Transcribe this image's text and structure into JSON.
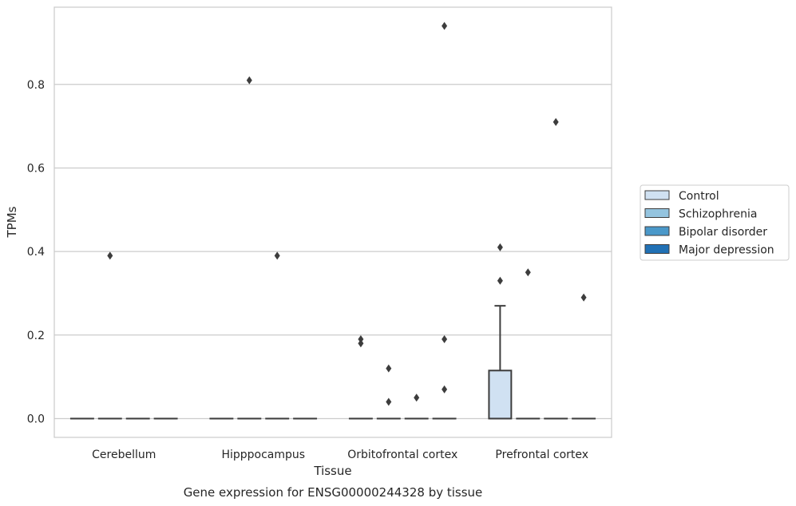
{
  "chart_data": {
    "type": "box",
    "caption": "Gene expression for ENSG00000244328 by tissue",
    "xlabel": "Tissue",
    "ylabel": "TPMs",
    "categories": [
      "Cerebellum",
      "Hipppocampus",
      "Orbitofrontal cortex",
      "Prefrontal cortex"
    ],
    "ylim": [
      -0.045,
      0.985
    ],
    "yticks": [
      "0.0",
      "0.2",
      "0.4",
      "0.6",
      "0.8"
    ],
    "grid": "horizontal",
    "legend_position": "right",
    "series": [
      {
        "name": "Control",
        "color": "#d0e1f2",
        "boxes": [
          {
            "category": "Cerebellum",
            "q1": 0,
            "median": 0,
            "q3": 0,
            "whisker_low": 0,
            "whisker_high": 0,
            "outliers": []
          },
          {
            "category": "Hipppocampus",
            "q1": 0,
            "median": 0,
            "q3": 0,
            "whisker_low": 0,
            "whisker_high": 0,
            "outliers": []
          },
          {
            "category": "Orbitofrontal cortex",
            "q1": 0,
            "median": 0,
            "q3": 0,
            "whisker_low": 0,
            "whisker_high": 0,
            "outliers": [
              0.19,
              0.18
            ]
          },
          {
            "category": "Prefrontal cortex",
            "q1": 0,
            "median": 0,
            "q3": 0.115,
            "whisker_low": 0,
            "whisker_high": 0.27,
            "outliers": [
              0.41,
              0.33
            ]
          }
        ]
      },
      {
        "name": "Schizophrenia",
        "color": "#94c4df",
        "boxes": [
          {
            "category": "Cerebellum",
            "q1": 0,
            "median": 0,
            "q3": 0,
            "whisker_low": 0,
            "whisker_high": 0,
            "outliers": [
              0.39
            ]
          },
          {
            "category": "Hipppocampus",
            "q1": 0,
            "median": 0,
            "q3": 0,
            "whisker_low": 0,
            "whisker_high": 0,
            "outliers": [
              0.81
            ]
          },
          {
            "category": "Orbitofrontal cortex",
            "q1": 0,
            "median": 0,
            "q3": 0,
            "whisker_low": 0,
            "whisker_high": 0,
            "outliers": [
              0.12,
              0.04
            ]
          },
          {
            "category": "Prefrontal cortex",
            "q1": 0,
            "median": 0,
            "q3": 0,
            "whisker_low": 0,
            "whisker_high": 0,
            "outliers": [
              0.35
            ]
          }
        ]
      },
      {
        "name": "Bipolar disorder",
        "color": "#4a98c9",
        "boxes": [
          {
            "category": "Cerebellum",
            "q1": 0,
            "median": 0,
            "q3": 0,
            "whisker_low": 0,
            "whisker_high": 0,
            "outliers": []
          },
          {
            "category": "Hipppocampus",
            "q1": 0,
            "median": 0,
            "q3": 0,
            "whisker_low": 0,
            "whisker_high": 0,
            "outliers": [
              0.39
            ]
          },
          {
            "category": "Orbitofrontal cortex",
            "q1": 0,
            "median": 0,
            "q3": 0,
            "whisker_low": 0,
            "whisker_high": 0,
            "outliers": [
              0.05
            ]
          },
          {
            "category": "Prefrontal cortex",
            "q1": 0,
            "median": 0,
            "q3": 0,
            "whisker_low": 0,
            "whisker_high": 0,
            "outliers": [
              0.71
            ]
          }
        ]
      },
      {
        "name": "Major depression",
        "color": "#2171b5",
        "boxes": [
          {
            "category": "Cerebellum",
            "q1": 0,
            "median": 0,
            "q3": 0,
            "whisker_low": 0,
            "whisker_high": 0,
            "outliers": []
          },
          {
            "category": "Hipppocampus",
            "q1": 0,
            "median": 0,
            "q3": 0,
            "whisker_low": 0,
            "whisker_high": 0,
            "outliers": []
          },
          {
            "category": "Orbitofrontal cortex",
            "q1": 0,
            "median": 0,
            "q3": 0,
            "whisker_low": 0,
            "whisker_high": 0,
            "outliers": [
              0.94,
              0.19,
              0.07
            ]
          },
          {
            "category": "Prefrontal cortex",
            "q1": 0,
            "median": 0,
            "q3": 0,
            "whisker_low": 0,
            "whisker_high": 0,
            "outliers": [
              0.29
            ]
          }
        ]
      }
    ]
  }
}
